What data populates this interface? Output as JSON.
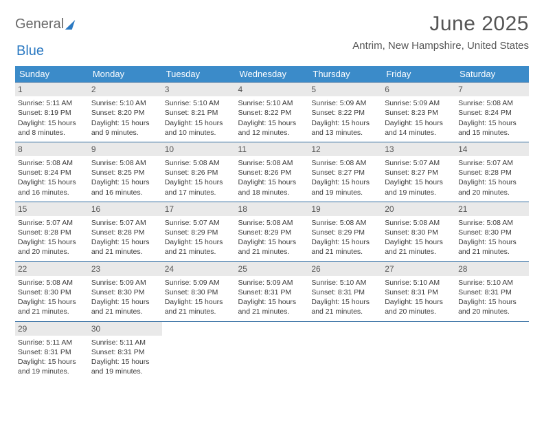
{
  "logo": {
    "text1": "General",
    "text2": "Blue"
  },
  "title": "June 2025",
  "location": "Antrim, New Hampshire, United States",
  "day_headers": [
    "Sunday",
    "Monday",
    "Tuesday",
    "Wednesday",
    "Thursday",
    "Friday",
    "Saturday"
  ],
  "colors": {
    "header_bg": "#3b8bc9",
    "header_text": "#ffffff",
    "daynum_bg": "#e9e9e9",
    "row_divider": "#2f6aa0",
    "logo_blue": "#2b79c2",
    "body_text": "#3a3a3a"
  },
  "weeks": [
    [
      {
        "n": "1",
        "sr": "Sunrise: 5:11 AM",
        "ss": "Sunset: 8:19 PM",
        "d1": "Daylight: 15 hours",
        "d2": "and 8 minutes."
      },
      {
        "n": "2",
        "sr": "Sunrise: 5:10 AM",
        "ss": "Sunset: 8:20 PM",
        "d1": "Daylight: 15 hours",
        "d2": "and 9 minutes."
      },
      {
        "n": "3",
        "sr": "Sunrise: 5:10 AM",
        "ss": "Sunset: 8:21 PM",
        "d1": "Daylight: 15 hours",
        "d2": "and 10 minutes."
      },
      {
        "n": "4",
        "sr": "Sunrise: 5:10 AM",
        "ss": "Sunset: 8:22 PM",
        "d1": "Daylight: 15 hours",
        "d2": "and 12 minutes."
      },
      {
        "n": "5",
        "sr": "Sunrise: 5:09 AM",
        "ss": "Sunset: 8:22 PM",
        "d1": "Daylight: 15 hours",
        "d2": "and 13 minutes."
      },
      {
        "n": "6",
        "sr": "Sunrise: 5:09 AM",
        "ss": "Sunset: 8:23 PM",
        "d1": "Daylight: 15 hours",
        "d2": "and 14 minutes."
      },
      {
        "n": "7",
        "sr": "Sunrise: 5:08 AM",
        "ss": "Sunset: 8:24 PM",
        "d1": "Daylight: 15 hours",
        "d2": "and 15 minutes."
      }
    ],
    [
      {
        "n": "8",
        "sr": "Sunrise: 5:08 AM",
        "ss": "Sunset: 8:24 PM",
        "d1": "Daylight: 15 hours",
        "d2": "and 16 minutes."
      },
      {
        "n": "9",
        "sr": "Sunrise: 5:08 AM",
        "ss": "Sunset: 8:25 PM",
        "d1": "Daylight: 15 hours",
        "d2": "and 16 minutes."
      },
      {
        "n": "10",
        "sr": "Sunrise: 5:08 AM",
        "ss": "Sunset: 8:26 PM",
        "d1": "Daylight: 15 hours",
        "d2": "and 17 minutes."
      },
      {
        "n": "11",
        "sr": "Sunrise: 5:08 AM",
        "ss": "Sunset: 8:26 PM",
        "d1": "Daylight: 15 hours",
        "d2": "and 18 minutes."
      },
      {
        "n": "12",
        "sr": "Sunrise: 5:08 AM",
        "ss": "Sunset: 8:27 PM",
        "d1": "Daylight: 15 hours",
        "d2": "and 19 minutes."
      },
      {
        "n": "13",
        "sr": "Sunrise: 5:07 AM",
        "ss": "Sunset: 8:27 PM",
        "d1": "Daylight: 15 hours",
        "d2": "and 19 minutes."
      },
      {
        "n": "14",
        "sr": "Sunrise: 5:07 AM",
        "ss": "Sunset: 8:28 PM",
        "d1": "Daylight: 15 hours",
        "d2": "and 20 minutes."
      }
    ],
    [
      {
        "n": "15",
        "sr": "Sunrise: 5:07 AM",
        "ss": "Sunset: 8:28 PM",
        "d1": "Daylight: 15 hours",
        "d2": "and 20 minutes."
      },
      {
        "n": "16",
        "sr": "Sunrise: 5:07 AM",
        "ss": "Sunset: 8:28 PM",
        "d1": "Daylight: 15 hours",
        "d2": "and 21 minutes."
      },
      {
        "n": "17",
        "sr": "Sunrise: 5:07 AM",
        "ss": "Sunset: 8:29 PM",
        "d1": "Daylight: 15 hours",
        "d2": "and 21 minutes."
      },
      {
        "n": "18",
        "sr": "Sunrise: 5:08 AM",
        "ss": "Sunset: 8:29 PM",
        "d1": "Daylight: 15 hours",
        "d2": "and 21 minutes."
      },
      {
        "n": "19",
        "sr": "Sunrise: 5:08 AM",
        "ss": "Sunset: 8:29 PM",
        "d1": "Daylight: 15 hours",
        "d2": "and 21 minutes."
      },
      {
        "n": "20",
        "sr": "Sunrise: 5:08 AM",
        "ss": "Sunset: 8:30 PM",
        "d1": "Daylight: 15 hours",
        "d2": "and 21 minutes."
      },
      {
        "n": "21",
        "sr": "Sunrise: 5:08 AM",
        "ss": "Sunset: 8:30 PM",
        "d1": "Daylight: 15 hours",
        "d2": "and 21 minutes."
      }
    ],
    [
      {
        "n": "22",
        "sr": "Sunrise: 5:08 AM",
        "ss": "Sunset: 8:30 PM",
        "d1": "Daylight: 15 hours",
        "d2": "and 21 minutes."
      },
      {
        "n": "23",
        "sr": "Sunrise: 5:09 AM",
        "ss": "Sunset: 8:30 PM",
        "d1": "Daylight: 15 hours",
        "d2": "and 21 minutes."
      },
      {
        "n": "24",
        "sr": "Sunrise: 5:09 AM",
        "ss": "Sunset: 8:30 PM",
        "d1": "Daylight: 15 hours",
        "d2": "and 21 minutes."
      },
      {
        "n": "25",
        "sr": "Sunrise: 5:09 AM",
        "ss": "Sunset: 8:31 PM",
        "d1": "Daylight: 15 hours",
        "d2": "and 21 minutes."
      },
      {
        "n": "26",
        "sr": "Sunrise: 5:10 AM",
        "ss": "Sunset: 8:31 PM",
        "d1": "Daylight: 15 hours",
        "d2": "and 21 minutes."
      },
      {
        "n": "27",
        "sr": "Sunrise: 5:10 AM",
        "ss": "Sunset: 8:31 PM",
        "d1": "Daylight: 15 hours",
        "d2": "and 20 minutes."
      },
      {
        "n": "28",
        "sr": "Sunrise: 5:10 AM",
        "ss": "Sunset: 8:31 PM",
        "d1": "Daylight: 15 hours",
        "d2": "and 20 minutes."
      }
    ],
    [
      {
        "n": "29",
        "sr": "Sunrise: 5:11 AM",
        "ss": "Sunset: 8:31 PM",
        "d1": "Daylight: 15 hours",
        "d2": "and 19 minutes."
      },
      {
        "n": "30",
        "sr": "Sunrise: 5:11 AM",
        "ss": "Sunset: 8:31 PM",
        "d1": "Daylight: 15 hours",
        "d2": "and 19 minutes."
      },
      null,
      null,
      null,
      null,
      null
    ]
  ]
}
